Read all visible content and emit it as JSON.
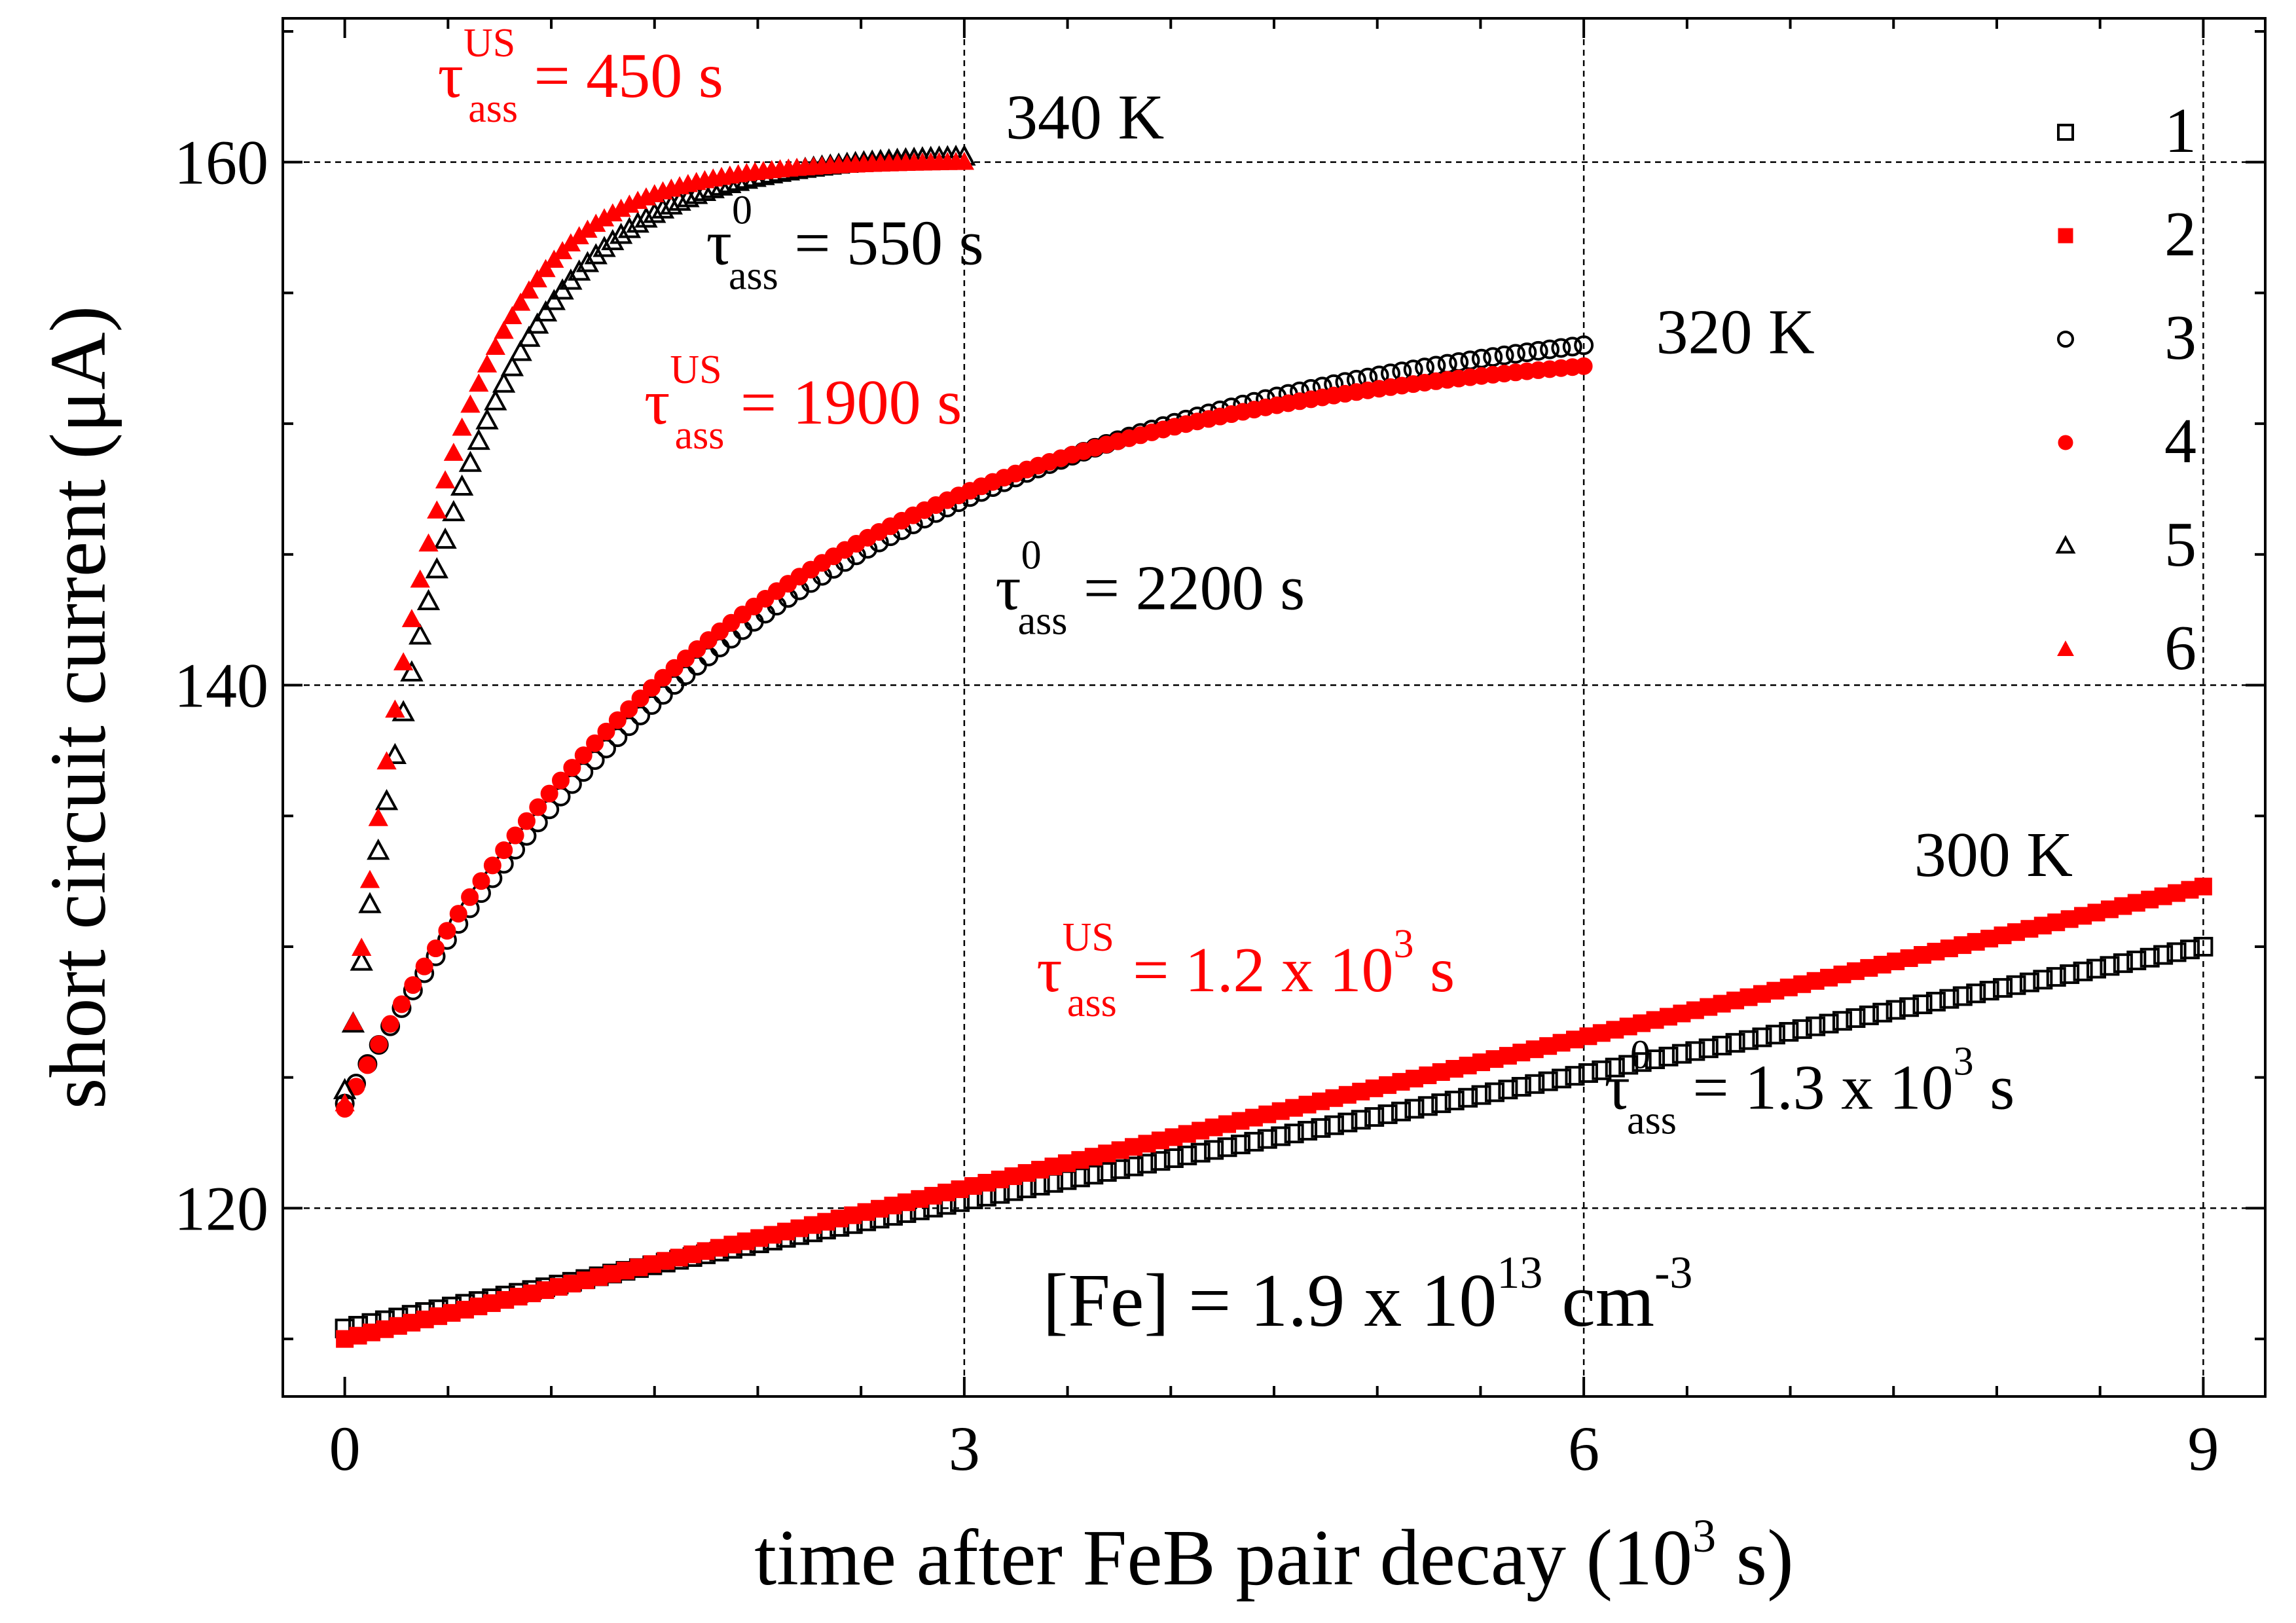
{
  "chart_data": {
    "type": "scatter",
    "xlabel": {
      "main": "time after FeB pair decay (10",
      "sup": "3",
      "end": " s)"
    },
    "ylabel": "short circuit current (μA)",
    "xlim": [
      -0.3,
      9.3
    ],
    "ylim": [
      112.8,
      165.5
    ],
    "x_ticks": [
      {
        "value": 0,
        "label": "0"
      },
      {
        "value": 3,
        "label": "3"
      },
      {
        "value": 6,
        "label": "6"
      },
      {
        "value": 9,
        "label": "9"
      }
    ],
    "x_minor_step": 0.5,
    "y_ticks": [
      {
        "value": 120,
        "label": "120"
      },
      {
        "value": 140,
        "label": "140"
      },
      {
        "value": 160,
        "label": "160"
      }
    ],
    "y_minor_step": 5,
    "grid": "dashed, at major ticks",
    "legend": {
      "placement": "top-right",
      "entries": [
        {
          "label": "1",
          "marker": "square-open",
          "color": "#000000"
        },
        {
          "label": "2",
          "marker": "square-filled",
          "color": "#ff0000"
        },
        {
          "label": "3",
          "marker": "circle-open",
          "color": "#000000"
        },
        {
          "label": "4",
          "marker": "circle-filled",
          "color": "#ff0000"
        },
        {
          "label": "5",
          "marker": "triangle-open",
          "color": "#000000"
        },
        {
          "label": "6",
          "marker": "triangle-filled",
          "color": "#ff0000"
        }
      ]
    },
    "series": [
      {
        "id": "1",
        "marker": "square-open",
        "color": "#000000",
        "model": "linear",
        "x_start": 0,
        "x_end": 9,
        "y_start": 115.4,
        "y_end": 130.0,
        "n": 140
      },
      {
        "id": "2",
        "marker": "square-filled",
        "color": "#ff0000",
        "model": "linear",
        "x_start": 0,
        "x_end": 9,
        "y_start": 115.0,
        "y_end": 132.3,
        "n": 140
      },
      {
        "id": "3",
        "marker": "circle-open",
        "color": "#000000",
        "model": "exp",
        "x_start": 0,
        "x_end": 6,
        "y_start": 124.0,
        "y_end": 153.0,
        "tau": 2.2,
        "n": 110
      },
      {
        "id": "4",
        "marker": "circle-filled",
        "color": "#ff0000",
        "model": "exp",
        "x_start": 0,
        "x_end": 6,
        "y_start": 123.8,
        "y_end": 152.2,
        "tau": 1.9,
        "n": 110
      },
      {
        "id": "5",
        "marker": "triangle-open",
        "color": "#000000",
        "model": "exp",
        "x_start": 0,
        "x_end": 3,
        "y_start": 124.5,
        "y_end": 160.2,
        "tau": 0.55,
        "n": 75
      },
      {
        "id": "6",
        "marker": "triangle-filled",
        "color": "#ff0000",
        "model": "exp",
        "x_start": 0,
        "x_end": 3,
        "y_start": 124.0,
        "y_end": 160.0,
        "tau": 0.45,
        "n": 75
      }
    ],
    "annotations": [
      {
        "id": "temp-340",
        "text": "340 K",
        "color": "#000000",
        "x": 3.2,
        "y": 160.9
      },
      {
        "id": "temp-320",
        "text": "320 K",
        "color": "#000000",
        "x": 6.35,
        "y": 152.7
      },
      {
        "id": "temp-300",
        "text": "300 K",
        "color": "#000000",
        "x": 7.6,
        "y": 132.7
      },
      {
        "id": "tau-us-450",
        "sym": "τ",
        "sup": "US",
        "sub": "ass",
        "value": " = 450 s",
        "color": "#ff0000",
        "x": 0.45,
        "y": 162.5
      },
      {
        "id": "tau-0-550",
        "sym": "τ",
        "sup": "0",
        "sub": "ass",
        "value": " = 550 s",
        "color": "#000000",
        "x": 1.75,
        "y": 156.1
      },
      {
        "id": "tau-us-1900",
        "sym": "τ",
        "sup": "US",
        "sub": "ass",
        "value": " = 1900 s",
        "color": "#ff0000",
        "x": 1.45,
        "y": 150.0
      },
      {
        "id": "tau-0-2200",
        "sym": "τ",
        "sup": "0",
        "sub": "ass",
        "value": " = 2200 s",
        "color": "#000000",
        "x": 3.15,
        "y": 142.9
      },
      {
        "id": "tau-us-1200",
        "sym": "τ",
        "sup": "US",
        "sub": "ass",
        "value1": " = 1.2 x 10",
        "exp": "3",
        "value2": " s",
        "color": "#ff0000",
        "x": 3.35,
        "y": 128.3
      },
      {
        "id": "tau-0-1300",
        "sym": "τ",
        "sup": "0",
        "sub": "ass",
        "value1": " = 1.3 x 10",
        "exp": "3",
        "value2": " s",
        "color": "#000000",
        "x": 6.1,
        "y": 123.8
      },
      {
        "id": "fe-concentration",
        "main": "[Fe] = 1.9 x 10",
        "sup": "13",
        "mid": " cm",
        "sup2": "-3",
        "color": "#000000",
        "x": 3.38,
        "y": 115.5
      }
    ]
  }
}
